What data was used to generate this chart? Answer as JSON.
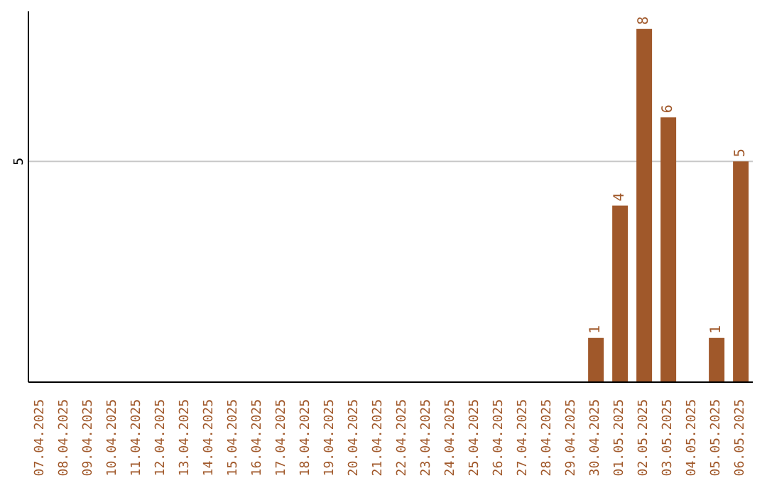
{
  "chart_data": {
    "type": "bar",
    "categories": [
      "07.04.2025",
      "08.04.2025",
      "09.04.2025",
      "10.04.2025",
      "11.04.2025",
      "12.04.2025",
      "13.04.2025",
      "14.04.2025",
      "15.04.2025",
      "16.04.2025",
      "17.04.2025",
      "18.04.2025",
      "19.04.2025",
      "20.04.2025",
      "21.04.2025",
      "22.04.2025",
      "23.04.2025",
      "24.04.2025",
      "25.04.2025",
      "26.04.2025",
      "27.04.2025",
      "28.04.2025",
      "29.04.2025",
      "30.04.2025",
      "01.05.2025",
      "02.05.2025",
      "03.05.2025",
      "04.05.2025",
      "05.05.2025",
      "06.05.2025"
    ],
    "values": [
      null,
      null,
      null,
      null,
      null,
      null,
      null,
      null,
      null,
      null,
      null,
      null,
      null,
      null,
      null,
      null,
      null,
      null,
      null,
      null,
      null,
      null,
      null,
      1,
      4,
      8,
      6,
      null,
      1,
      5
    ],
    "color": "#a0582a",
    "ylim": [
      0,
      8.4
    ],
    "yticks": [
      5
    ],
    "grid": "y",
    "data_labels": true
  }
}
